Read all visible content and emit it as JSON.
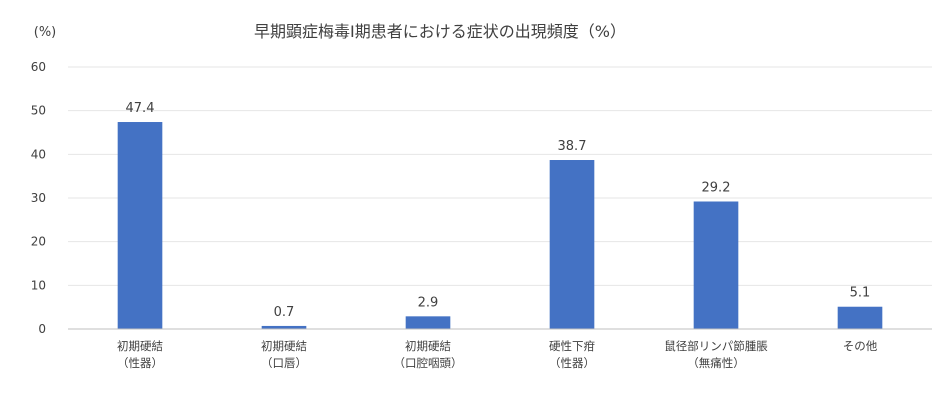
{
  "chart_data": {
    "type": "bar",
    "title": "早期顕症梅毒Ⅰ期患者における症状の出現頻度（%）",
    "ylabel": "(%)",
    "xlabel": "",
    "ylim": [
      0,
      60
    ],
    "yticks": [
      0,
      10,
      20,
      30,
      40,
      50,
      60
    ],
    "grid": true,
    "legend": "none",
    "bar_color": "#4472c4",
    "categories": [
      [
        "初期硬結",
        "（性器）"
      ],
      [
        "初期硬結",
        "（口唇）"
      ],
      [
        "初期硬結",
        "（口腔咽頭）"
      ],
      [
        "硬性下疳",
        "（性器）"
      ],
      [
        "鼠径部リンパ節腫脹",
        "（無痛性）"
      ],
      [
        "その他"
      ]
    ],
    "values": [
      47.4,
      0.7,
      2.9,
      38.7,
      29.2,
      5.1
    ],
    "data_labels": [
      "47.4",
      "0.7",
      "2.9",
      "38.7",
      "29.2",
      "5.1"
    ]
  }
}
